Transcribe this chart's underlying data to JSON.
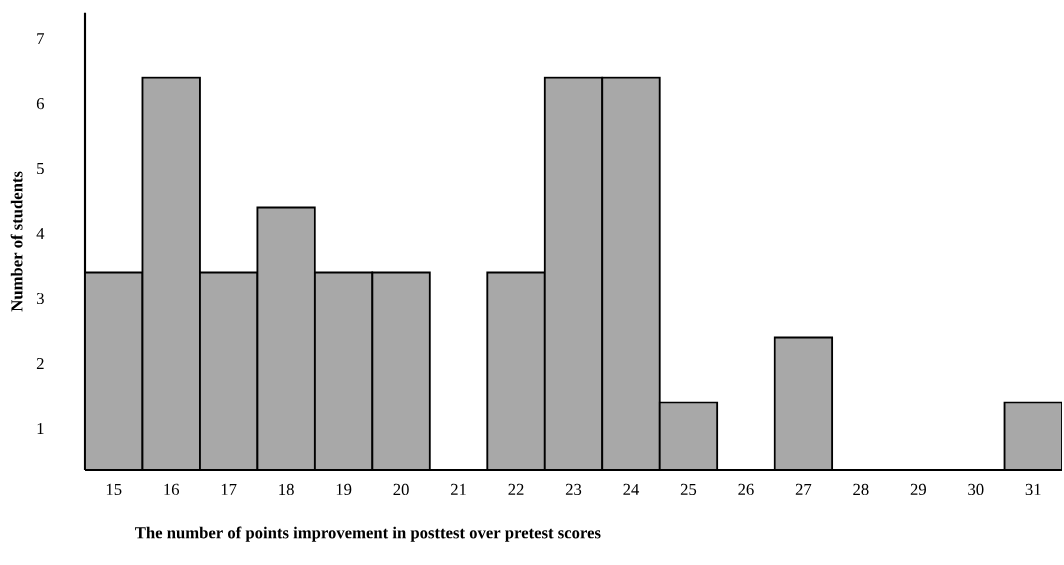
{
  "chart_data": {
    "type": "bar",
    "categories": [
      "15",
      "16",
      "17",
      "18",
      "19",
      "20",
      "21",
      "22",
      "23",
      "24",
      "25",
      "26",
      "27",
      "28",
      "29",
      "30",
      "31"
    ],
    "values": [
      3.4,
      6.4,
      3.4,
      4.4,
      3.4,
      3.4,
      null,
      3.4,
      6.4,
      6.4,
      1.4,
      null,
      2.4,
      null,
      null,
      null,
      1.4
    ],
    "color": "#a8a8a8",
    "ylim": [
      0.36,
      7.4
    ],
    "yticks": [
      1,
      2,
      3,
      4,
      5,
      6,
      7
    ],
    "grid": false,
    "xlabel": "The number of points improvement in posttest over pretest scores",
    "ylabel": "Number of students"
  }
}
